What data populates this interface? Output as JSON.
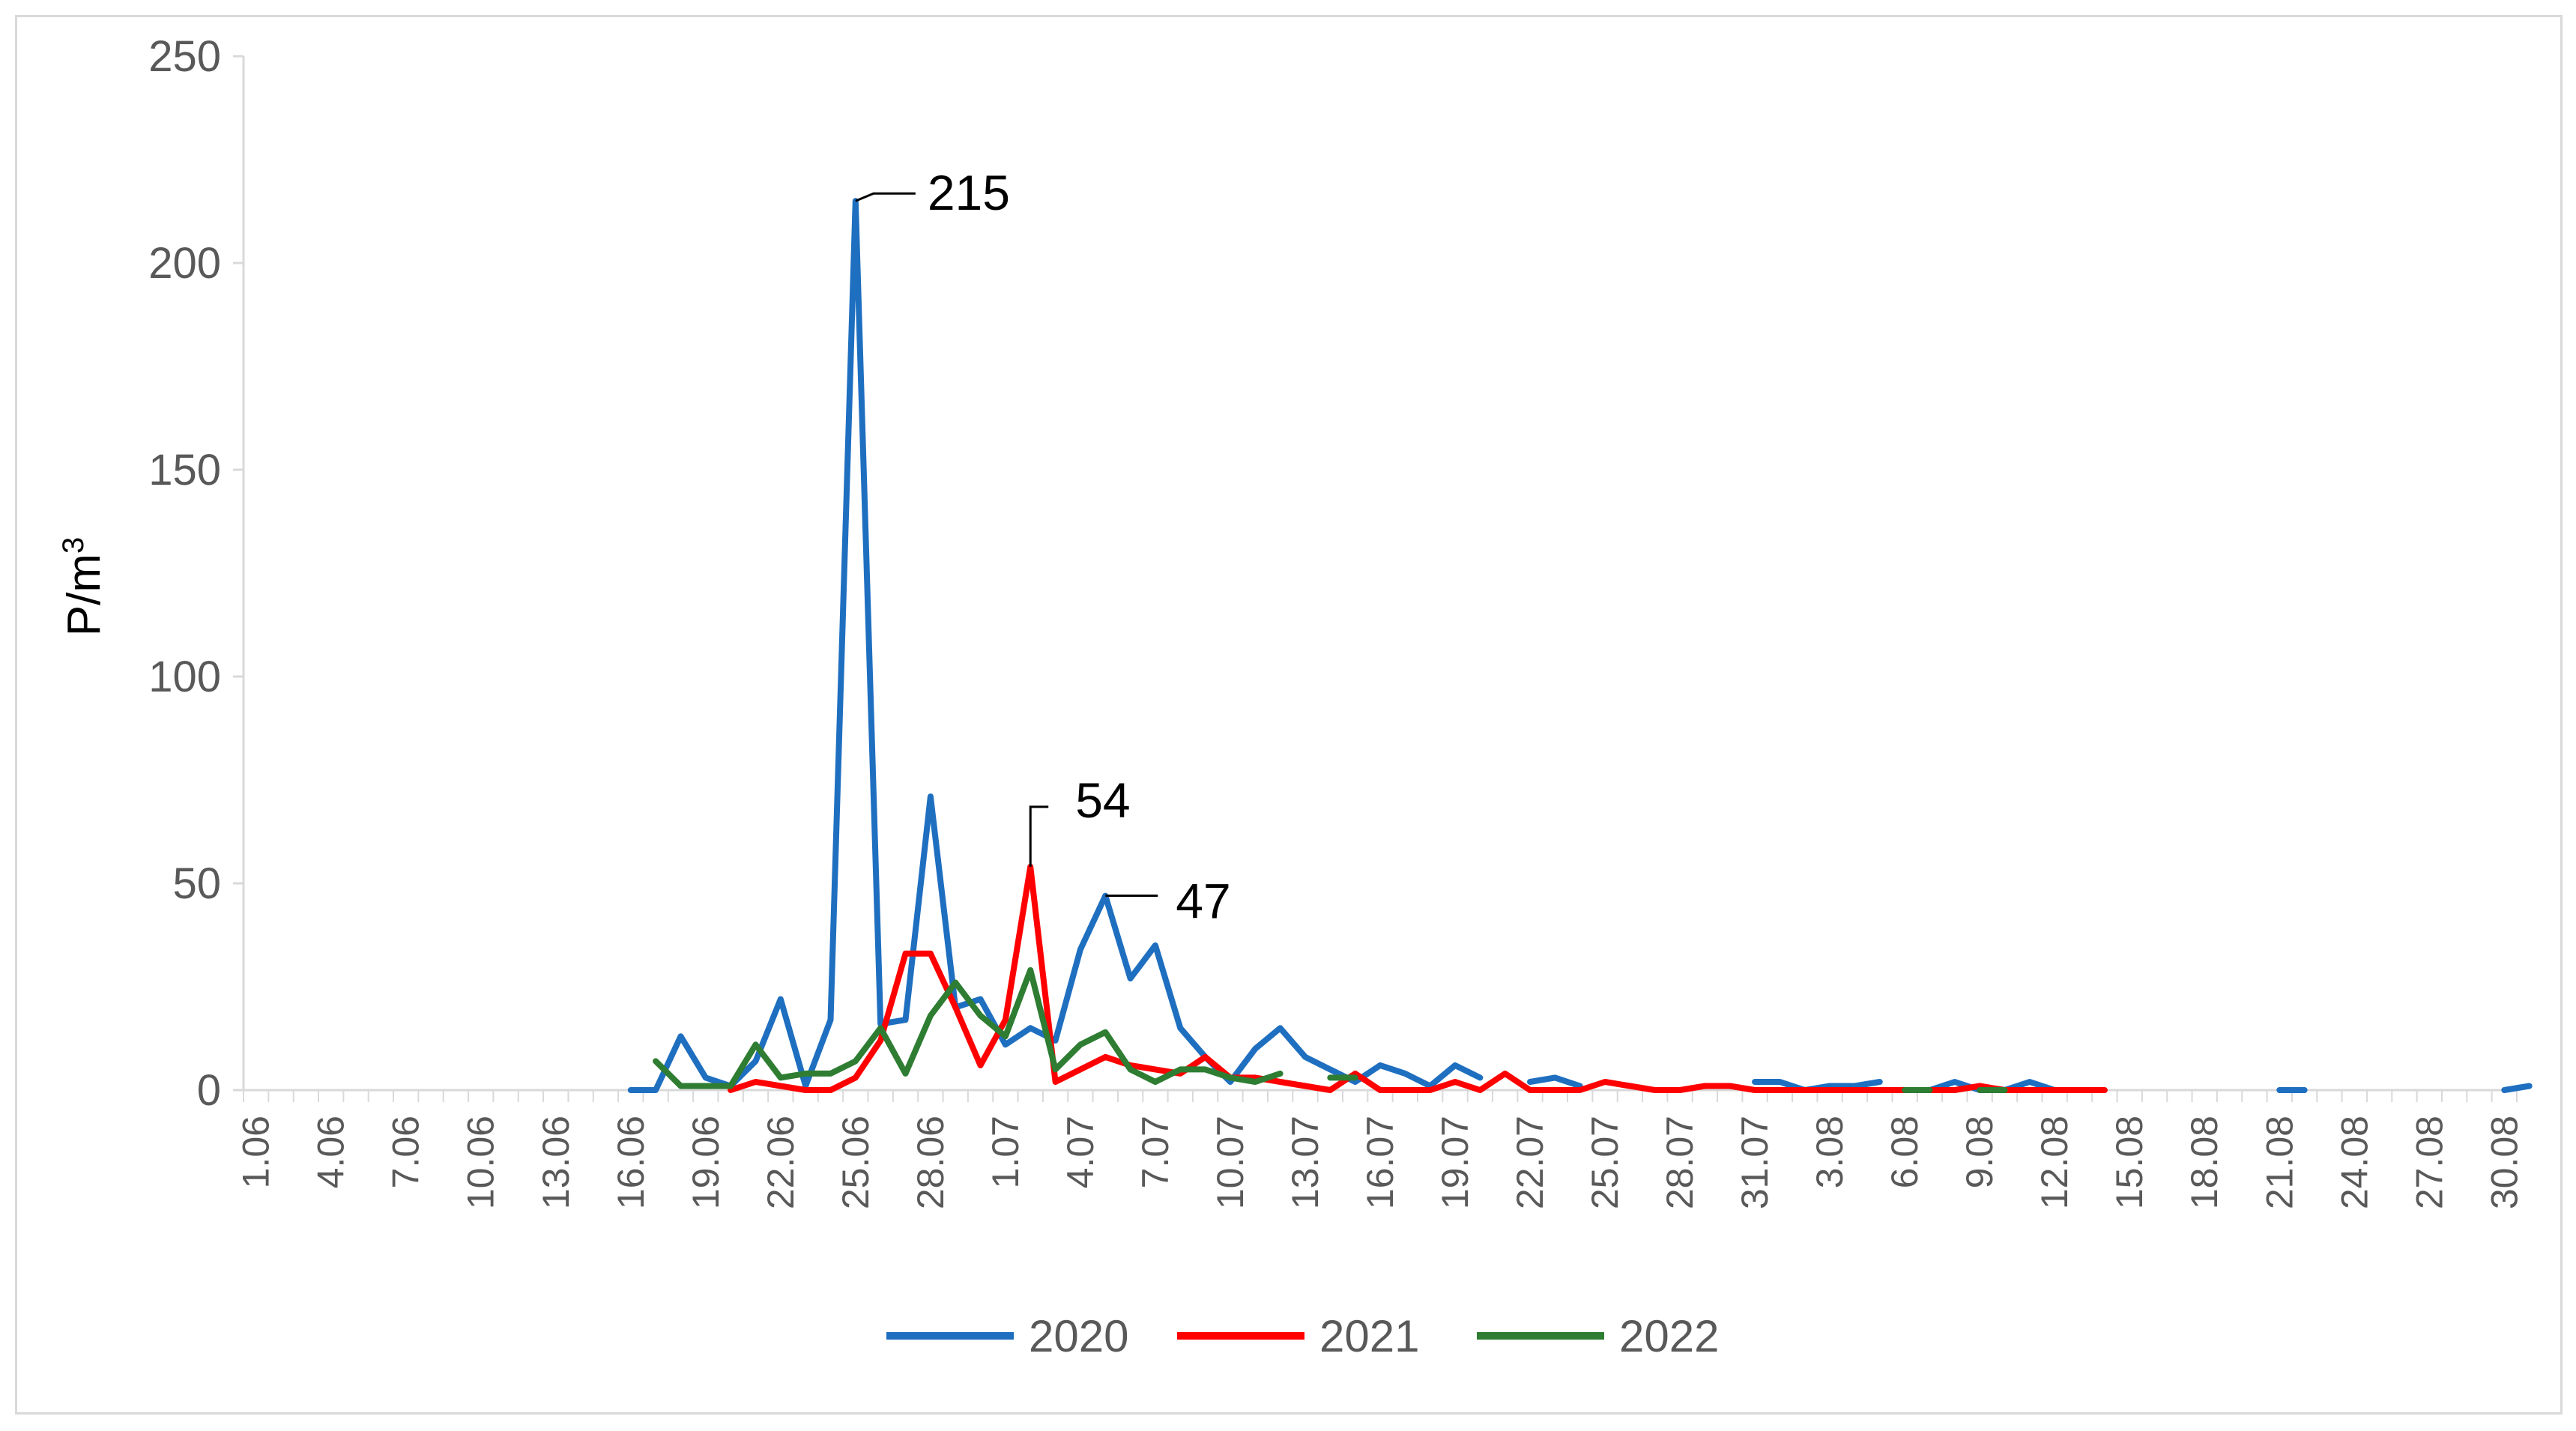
{
  "chart_data": {
    "type": "line",
    "title": "",
    "ylabel": "P/m",
    "ylabel_sup": "3",
    "xlabel": "",
    "ylim": [
      0,
      250
    ],
    "y_ticks": [
      "0",
      "50",
      "100",
      "150",
      "200",
      "250"
    ],
    "x_tick_labels": [
      "1.06",
      "4.06",
      "7.06",
      "10.06",
      "13.06",
      "16.06",
      "19.06",
      "22.06",
      "25.06",
      "28.06",
      "1.07",
      "4.07",
      "7.07",
      "10.07",
      "13.07",
      "16.07",
      "19.07",
      "22.07",
      "25.07",
      "28.07",
      "31.07",
      "3.08",
      "6.08",
      "9.08",
      "12.08",
      "15.08",
      "18.08",
      "21.08",
      "24.08",
      "27.08",
      "30.08"
    ],
    "x_range_days": 91,
    "legend_position": "bottom",
    "grid": false,
    "series": [
      {
        "name": "2020",
        "color": "#1f6fc0",
        "values": [
          null,
          null,
          null,
          null,
          null,
          null,
          null,
          null,
          null,
          null,
          null,
          null,
          null,
          null,
          null,
          0,
          0,
          13,
          3,
          1,
          7,
          22,
          1,
          17,
          215,
          16,
          17,
          71,
          20,
          22,
          11,
          15,
          12,
          34,
          47,
          27,
          35,
          15,
          8,
          2,
          10,
          15,
          8,
          5,
          2,
          6,
          4,
          1,
          6,
          3,
          null,
          2,
          3,
          1,
          null,
          null,
          null,
          null,
          null,
          null,
          2,
          2,
          0,
          1,
          1,
          2,
          null,
          0,
          2,
          0,
          0,
          2,
          0,
          null,
          null,
          null,
          null,
          null,
          null,
          null,
          null,
          0,
          0,
          null,
          null,
          null,
          null,
          null,
          null,
          null,
          0,
          1
        ]
      },
      {
        "name": "2021",
        "color": "#ff0000",
        "values": [
          null,
          null,
          null,
          null,
          null,
          null,
          null,
          null,
          null,
          null,
          null,
          null,
          null,
          null,
          null,
          null,
          null,
          null,
          null,
          0,
          2,
          1,
          0,
          0,
          3,
          12,
          33,
          33,
          20,
          6,
          17,
          54,
          2,
          5,
          8,
          6,
          5,
          4,
          8,
          3,
          3,
          2,
          1,
          0,
          4,
          0,
          0,
          0,
          2,
          0,
          4,
          0,
          0,
          0,
          2,
          1,
          0,
          0,
          1,
          1,
          0,
          0,
          0,
          0,
          0,
          0,
          0,
          0,
          0,
          1,
          0,
          0,
          0,
          0,
          0,
          null,
          null,
          null,
          null,
          null,
          null,
          null,
          null,
          null,
          null,
          null,
          null,
          null,
          null,
          null,
          null,
          null
        ]
      },
      {
        "name": "2022",
        "color": "#2e7d32",
        "values": [
          null,
          null,
          null,
          null,
          null,
          null,
          null,
          null,
          null,
          null,
          null,
          null,
          null,
          null,
          null,
          null,
          7,
          1,
          1,
          1,
          11,
          3,
          4,
          4,
          7,
          15,
          4,
          18,
          26,
          18,
          13,
          29,
          5,
          11,
          14,
          5,
          2,
          5,
          5,
          3,
          2,
          4,
          null,
          3,
          3,
          null,
          null,
          null,
          null,
          null,
          null,
          null,
          null,
          null,
          null,
          null,
          null,
          null,
          null,
          null,
          null,
          null,
          null,
          null,
          null,
          null,
          0,
          0,
          null,
          0,
          0,
          null,
          null,
          null,
          null,
          null,
          null,
          null,
          null,
          null,
          null,
          null,
          null,
          null,
          null,
          null,
          null,
          null,
          null,
          null,
          null,
          null
        ]
      }
    ],
    "annotations": [
      {
        "series": "2020",
        "x_index": 24,
        "value": 215,
        "label": "215"
      },
      {
        "series": "2021",
        "x_index": 31,
        "value": 54,
        "label": "54"
      },
      {
        "series": "2020",
        "x_index": 34,
        "value": 47,
        "label": "47"
      }
    ]
  }
}
